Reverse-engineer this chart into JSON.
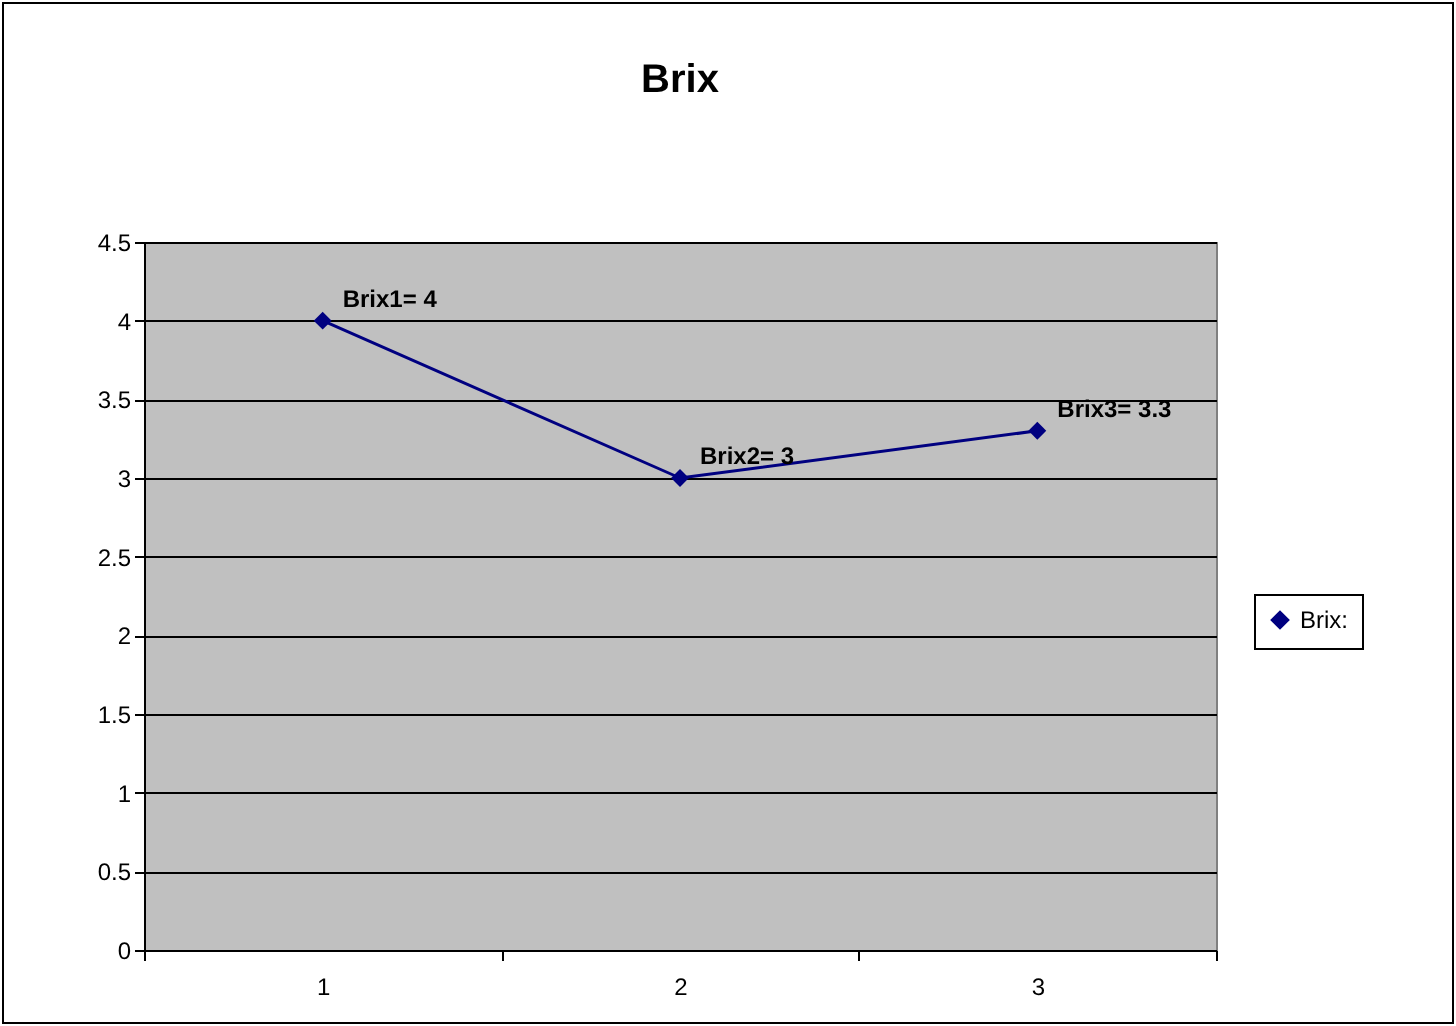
{
  "chart_data": {
    "type": "line",
    "title": "Brix",
    "categories": [
      "1",
      "2",
      "3"
    ],
    "series": [
      {
        "name": "Brix:",
        "color": "#000080",
        "values": [
          4,
          3,
          3.3
        ],
        "value_labels": [
          "Brix1= 4",
          "Brix2= 3",
          "Brix3= 3.3"
        ]
      }
    ],
    "ylim": [
      0,
      4.5
    ],
    "yticks": [
      0,
      0.5,
      1,
      1.5,
      2,
      2.5,
      3,
      3.5,
      4,
      4.5
    ],
    "grid": "y",
    "legend": "right",
    "marker": "diamond"
  }
}
